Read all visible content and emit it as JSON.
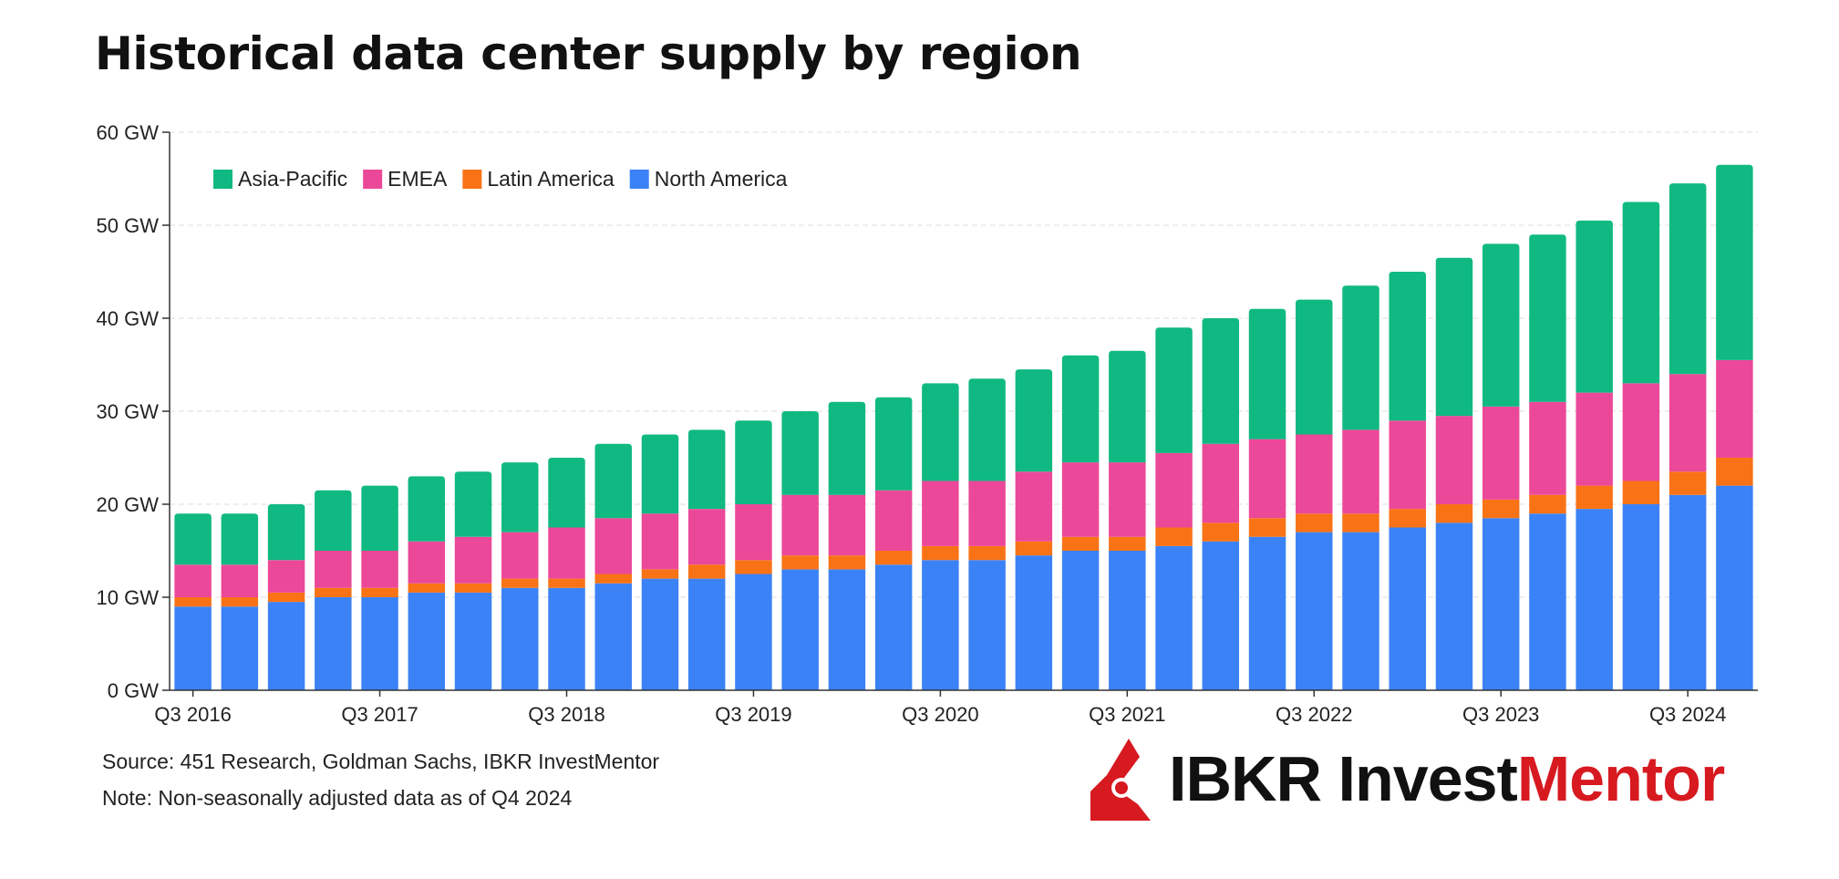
{
  "chart_data": {
    "type": "bar",
    "stacked": true,
    "title": "Historical data center supply by region",
    "xlabel": "",
    "ylabel": "",
    "ylim": [
      0,
      60
    ],
    "yticks": [
      "0 GW",
      "10 GW",
      "20 GW",
      "30 GW",
      "40 GW",
      "50 GW",
      "60 GW"
    ],
    "xtick_labels": [
      "Q3 2016",
      "Q3 2017",
      "Q3 2018",
      "Q3 2019",
      "Q3 2020",
      "Q3 2021",
      "Q3 2022",
      "Q3 2023",
      "Q3 2024"
    ],
    "xtick_every": 4,
    "grid": true,
    "legend_position": "top-left",
    "categories": [
      "Q3 2016",
      "Q4 2016",
      "Q1 2017",
      "Q2 2017",
      "Q3 2017",
      "Q4 2017",
      "Q1 2018",
      "Q2 2018",
      "Q3 2018",
      "Q4 2018",
      "Q1 2019",
      "Q2 2019",
      "Q3 2019",
      "Q4 2019",
      "Q1 2020",
      "Q2 2020",
      "Q3 2020",
      "Q4 2020",
      "Q1 2021",
      "Q2 2021",
      "Q3 2021",
      "Q4 2021",
      "Q1 2022",
      "Q2 2022",
      "Q3 2022",
      "Q4 2022",
      "Q1 2023",
      "Q2 2023",
      "Q3 2023",
      "Q4 2023",
      "Q1 2024",
      "Q2 2024",
      "Q3 2024",
      "Q4 2024"
    ],
    "series": [
      {
        "name": "North America",
        "color": "#3b82f6",
        "values": [
          9,
          9,
          9.5,
          10,
          10,
          10.5,
          10.5,
          11,
          11,
          11.5,
          12,
          12,
          12.5,
          13,
          13,
          13.5,
          14,
          14,
          14.5,
          15,
          15,
          15.5,
          16,
          16.5,
          17,
          17,
          17.5,
          18,
          18.5,
          19,
          19.5,
          20,
          21,
          22
        ]
      },
      {
        "name": "Latin America",
        "color": "#f97316",
        "values": [
          1,
          1,
          1,
          1,
          1,
          1,
          1,
          1,
          1,
          1,
          1,
          1.5,
          1.5,
          1.5,
          1.5,
          1.5,
          1.5,
          1.5,
          1.5,
          1.5,
          1.5,
          2,
          2,
          2,
          2,
          2,
          2,
          2,
          2,
          2,
          2.5,
          2.5,
          2.5,
          3
        ]
      },
      {
        "name": "EMEA",
        "color": "#ec4899",
        "values": [
          3.5,
          3.5,
          3.5,
          4,
          4,
          4.5,
          5,
          5,
          5.5,
          6,
          6,
          6,
          6,
          6.5,
          6.5,
          6.5,
          7,
          7,
          7.5,
          8,
          8,
          8,
          8.5,
          8.5,
          8.5,
          9,
          9.5,
          9.5,
          10,
          10,
          10,
          10.5,
          10.5,
          10.5
        ]
      },
      {
        "name": "Asia-Pacific",
        "color": "#10b981",
        "values": [
          5.5,
          5.5,
          6,
          6.5,
          7,
          7,
          7,
          7.5,
          7.5,
          8,
          8.5,
          8.5,
          9,
          9,
          10,
          10,
          10.5,
          11,
          11,
          11.5,
          12,
          13.5,
          13.5,
          14,
          14.5,
          15.5,
          16,
          17,
          17.5,
          18,
          18.5,
          19.5,
          20.5,
          21
        ]
      }
    ],
    "legend_order": [
      "Asia-Pacific",
      "EMEA",
      "Latin America",
      "North America"
    ]
  },
  "footer": {
    "source": "Source: 451 Research, Goldman Sachs, IBKR InvestMentor",
    "note": "Note: Non-seasonally adjusted data as of Q4 2024"
  },
  "brand": {
    "text_black": "IBKR Invest",
    "text_red": "Mentor",
    "accent": "#d71920"
  }
}
